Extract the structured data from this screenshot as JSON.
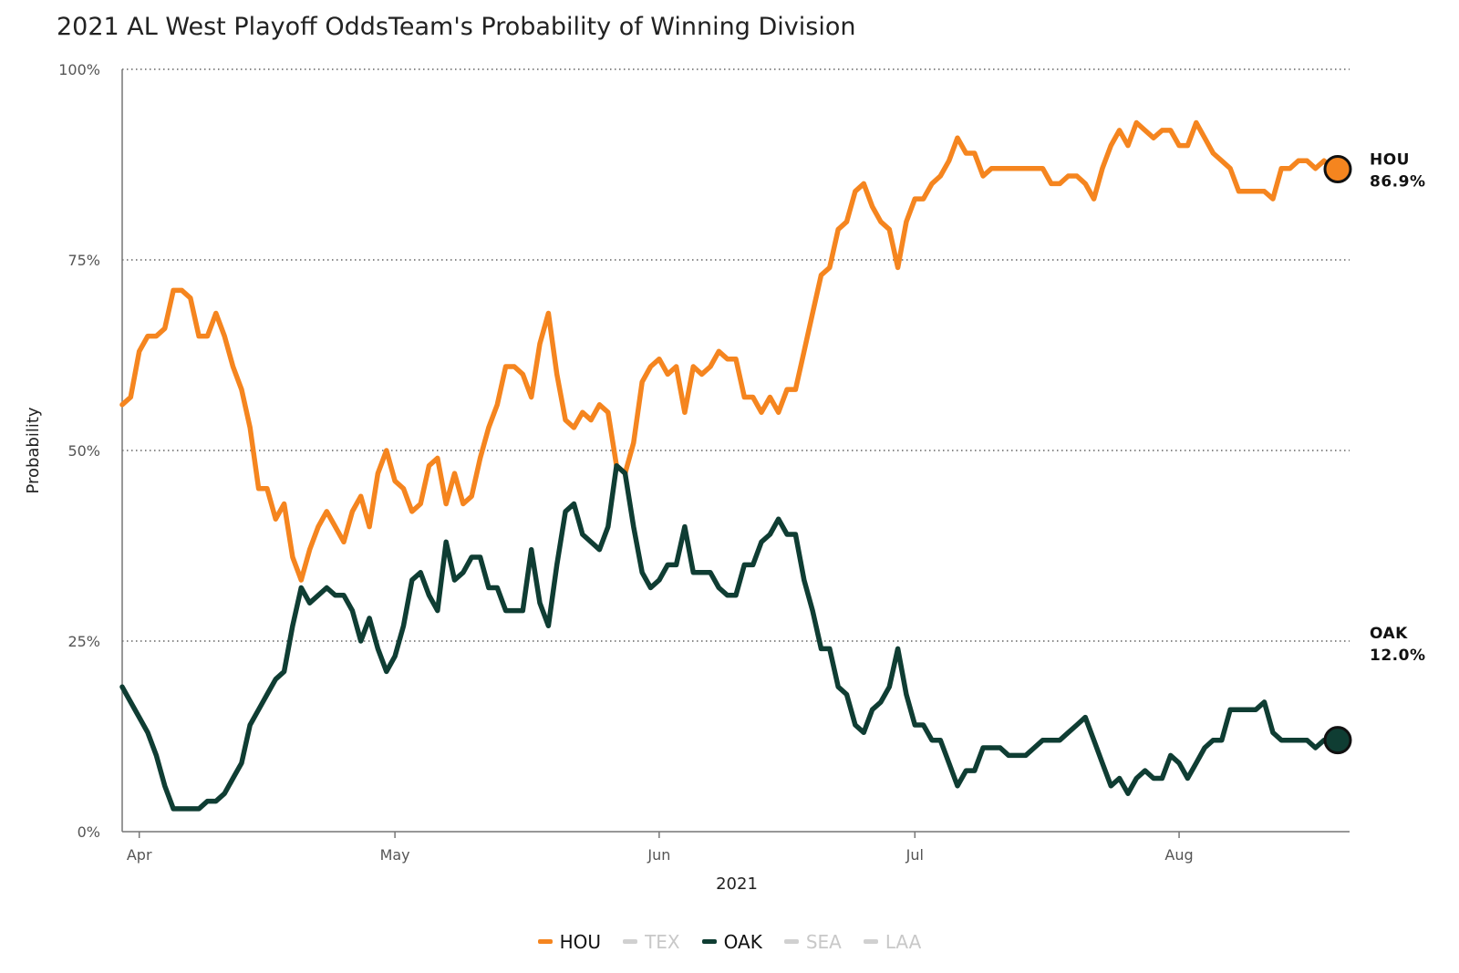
{
  "chart_data": {
    "type": "line",
    "title": "2021 AL West Playoff OddsTeam's Probability of Winning Division",
    "xlabel": "2021",
    "ylabel": "Probability",
    "x_ticks": [
      "Apr",
      "May",
      "Jun",
      "Jul",
      "Aug"
    ],
    "x_tick_dates": [
      "2021-04-01",
      "2021-05-01",
      "2021-06-01",
      "2021-07-01",
      "2021-08-01"
    ],
    "xlim": [
      "2021-03-30",
      "2021-08-21"
    ],
    "y_ticks": [
      "0%",
      "25%",
      "50%",
      "75%",
      "100%"
    ],
    "ylim": [
      0,
      100
    ],
    "grid": "horizontal dotted",
    "legend_position": "bottom",
    "legend": [
      {
        "name": "HOU",
        "color": "#f5851f",
        "active": true
      },
      {
        "name": "TEX",
        "color": "#d0d0d0",
        "active": false
      },
      {
        "name": "OAK",
        "color": "#0f3d33",
        "active": true
      },
      {
        "name": "SEA",
        "color": "#d0d0d0",
        "active": false
      },
      {
        "name": "LAA",
        "color": "#d0d0d0",
        "active": false
      }
    ],
    "end_labels": [
      {
        "team": "HOU",
        "value": "86.9%"
      },
      {
        "team": "OAK",
        "value": "12.0%"
      }
    ],
    "series": [
      {
        "name": "HOU",
        "color": "#f5851f",
        "start_date": "2021-03-30",
        "values": [
          56,
          57,
          63,
          65,
          65,
          66,
          71,
          71,
          70,
          65,
          65,
          68,
          65,
          61,
          58,
          53,
          45,
          45,
          41,
          43,
          36,
          33,
          37,
          40,
          42,
          40,
          38,
          42,
          44,
          40,
          47,
          50,
          46,
          45,
          42,
          43,
          48,
          49,
          43,
          47,
          43,
          44,
          49,
          53,
          56,
          61,
          61,
          60,
          57,
          64,
          68,
          60,
          54,
          53,
          55,
          54,
          56,
          55,
          48,
          47,
          51,
          59,
          61,
          62,
          60,
          61,
          55,
          61,
          60,
          61,
          63,
          62,
          62,
          57,
          57,
          55,
          57,
          55,
          58,
          58,
          63,
          68,
          73,
          74,
          79,
          80,
          84,
          85,
          82,
          80,
          79,
          74,
          80,
          83,
          83,
          85,
          86,
          88,
          91,
          89,
          89,
          86,
          87,
          87,
          87,
          87,
          87,
          87,
          87,
          85,
          85,
          86,
          86,
          85,
          83,
          87,
          90,
          92,
          90,
          93,
          92,
          91,
          92,
          92,
          90,
          90,
          93,
          91,
          89,
          88,
          87,
          84,
          84,
          84,
          84,
          83,
          87,
          87,
          88,
          88,
          87,
          88,
          87,
          86.9
        ]
      },
      {
        "name": "OAK",
        "color": "#0f3d33",
        "start_date": "2021-03-30",
        "values": [
          19,
          17,
          15,
          13,
          10,
          6,
          3,
          3,
          3,
          3,
          4,
          4,
          5,
          7,
          9,
          14,
          16,
          18,
          20,
          21,
          27,
          32,
          30,
          31,
          32,
          31,
          31,
          29,
          25,
          28,
          24,
          21,
          23,
          27,
          33,
          34,
          31,
          29,
          38,
          33,
          34,
          36,
          36,
          32,
          32,
          29,
          29,
          29,
          37,
          30,
          27,
          35,
          42,
          43,
          39,
          38,
          37,
          40,
          48,
          47,
          40,
          34,
          32,
          33,
          35,
          35,
          40,
          34,
          34,
          34,
          32,
          31,
          31,
          35,
          35,
          38,
          39,
          41,
          39,
          39,
          33,
          29,
          24,
          24,
          19,
          18,
          14,
          13,
          16,
          17,
          19,
          24,
          18,
          14,
          14,
          12,
          12,
          9,
          6,
          8,
          8,
          11,
          11,
          11,
          10,
          10,
          10,
          11,
          12,
          12,
          12,
          13,
          14,
          15,
          12,
          9,
          6,
          7,
          5,
          7,
          8,
          7,
          7,
          10,
          9,
          7,
          9,
          11,
          12,
          12,
          16,
          16,
          16,
          16,
          17,
          13,
          12,
          12,
          12,
          12,
          11,
          12
        ]
      }
    ]
  }
}
